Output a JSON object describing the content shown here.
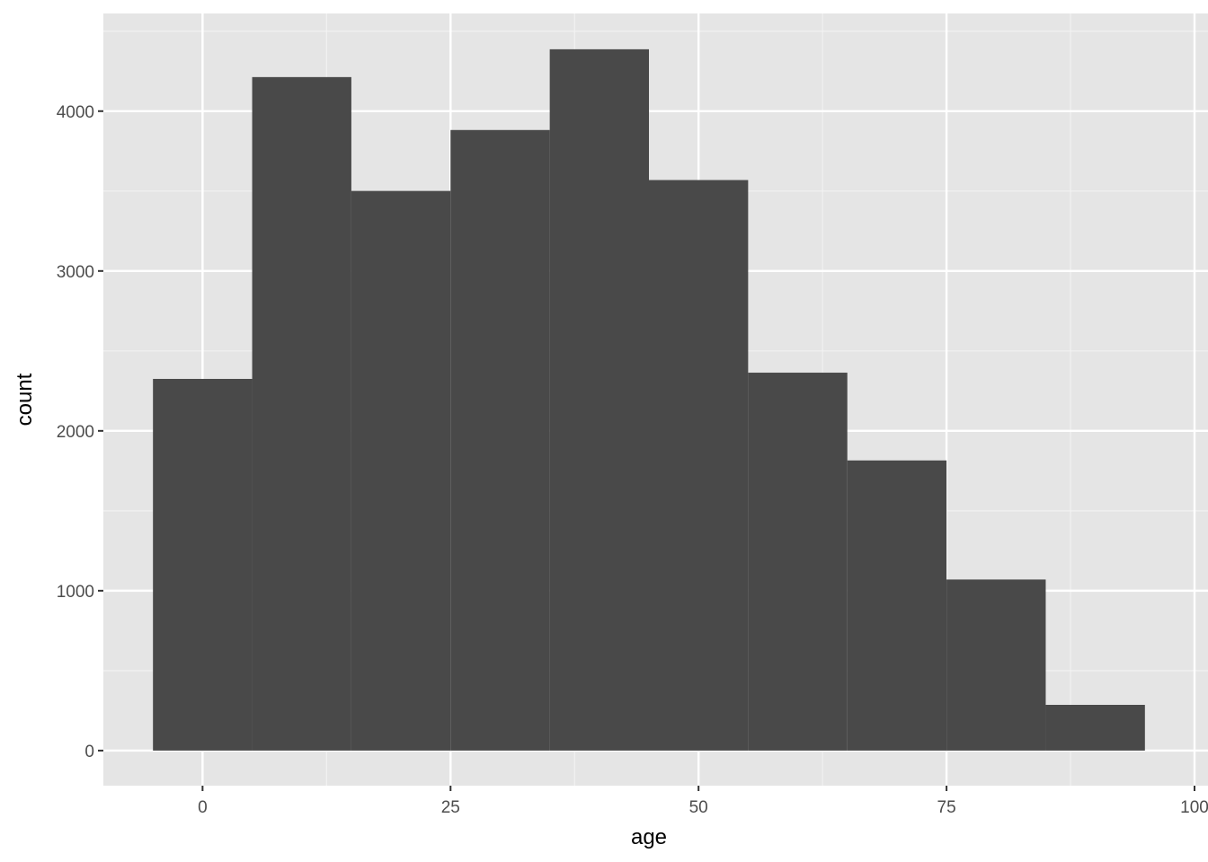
{
  "chart_data": {
    "type": "histogram",
    "x_label": "age",
    "y_label": "count",
    "bins": [
      -5,
      5,
      15,
      25,
      35,
      45,
      55,
      65,
      75,
      85,
      95
    ],
    "values": [
      2325,
      4213,
      3501,
      3882,
      4387,
      3569,
      2364,
      1815,
      1070,
      286
    ],
    "color": "#494949",
    "xlim": [
      -10,
      100
    ],
    "xticks": [
      0,
      25,
      50,
      75,
      100
    ],
    "ylim": [
      -219.6,
      4611
    ],
    "yticks": [
      0,
      1000,
      2000,
      3000,
      4000
    ],
    "grid": true
  }
}
